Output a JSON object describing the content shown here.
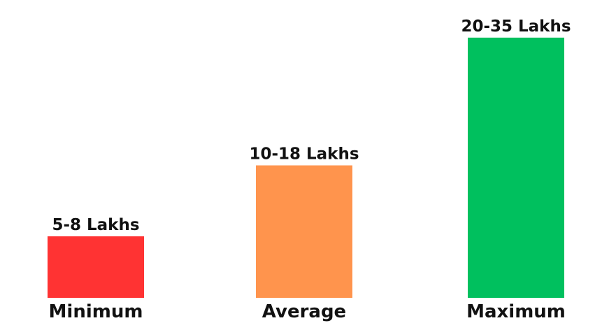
{
  "chart_data": {
    "type": "bar",
    "categories": [
      "Minimum",
      "Average",
      "Maximum"
    ],
    "values": [
      6.5,
      14,
      27.5
    ],
    "value_labels": [
      "5-8 Lakhs",
      "10-18 Lakhs",
      "20-35 Lakhs"
    ],
    "colors": [
      "#ff3333",
      "#ff944d",
      "#00c05e"
    ],
    "ylim": [
      0,
      30
    ],
    "grid": false,
    "legend": "none"
  }
}
